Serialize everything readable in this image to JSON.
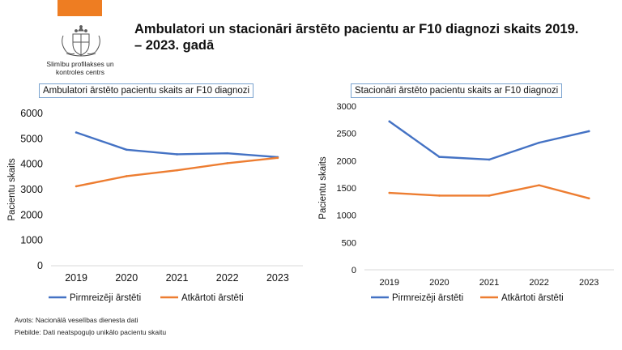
{
  "header": {
    "title": "Ambulatori un stacionāri ārstēto pacientu ar F10 diagnozi skaits 2019. – 2023. gadā",
    "org_name": "Slimību profilakses un kontroles centrs"
  },
  "colors": {
    "accent": "#ee7d22",
    "series1": "#4472c4",
    "series2": "#ed7d31"
  },
  "footer": {
    "source": "Avots: Nacionālā veselības dienesta dati",
    "note": "Piebilde: Dati neatspoguļo unikālo pacientu skaitu"
  },
  "chart_data": [
    {
      "type": "line",
      "title": "Ambulatori ārstēto pacientu skaits ar F10 diagnozi",
      "xlabel": "",
      "ylabel": "Pacientu skaits",
      "categories": [
        "2019",
        "2020",
        "2021",
        "2022",
        "2023"
      ],
      "ylim": [
        0,
        6000
      ],
      "yticks": [
        "0",
        "1000",
        "2000",
        "3000",
        "4000",
        "5000",
        "6000"
      ],
      "series": [
        {
          "name": "Pirmreizēji ārstēti",
          "color": "#4472c4",
          "values": [
            5250,
            4570,
            4390,
            4430,
            4280
          ]
        },
        {
          "name": "Atkārtoti ārstēti",
          "color": "#ed7d31",
          "values": [
            3130,
            3530,
            3760,
            4040,
            4250
          ]
        }
      ],
      "legend": "bottom"
    },
    {
      "type": "line",
      "title": "Stacionāri ārstēto pacientu skaits ar F10 diagnozi",
      "xlabel": "",
      "ylabel": "Pacientu skaits",
      "categories": [
        "2019",
        "2020",
        "2021",
        "2022",
        "2023"
      ],
      "ylim": [
        0,
        3000
      ],
      "yticks": [
        "0",
        "500",
        "1000",
        "1500",
        "2000",
        "2500",
        "3000"
      ],
      "series": [
        {
          "name": "Pirmreizēji ārstēti",
          "color": "#4472c4",
          "values": [
            2720,
            2070,
            2020,
            2330,
            2540
          ]
        },
        {
          "name": "Atkārtoti ārstēti",
          "color": "#ed7d31",
          "values": [
            1410,
            1360,
            1360,
            1550,
            1310
          ]
        }
      ],
      "legend": "bottom"
    }
  ]
}
